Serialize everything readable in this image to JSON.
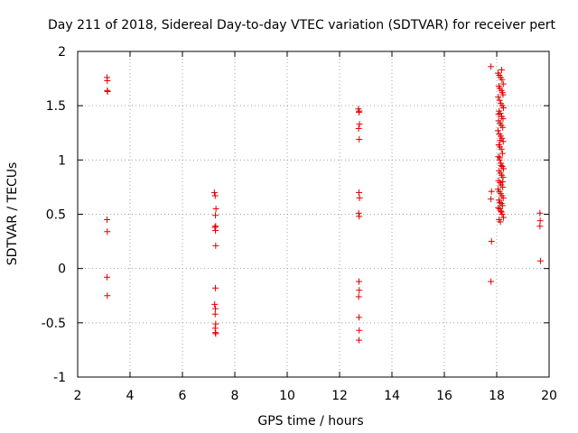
{
  "chart_data": {
    "type": "scatter",
    "title": "Day 211 of 2018, Sidereal Day-to-day VTEC variation (SDTVAR) for receiver pert",
    "xlabel": "GPS time / hours",
    "ylabel": "SDTVAR / TECUs",
    "xlim": [
      2,
      20
    ],
    "ylim": [
      -1,
      2
    ],
    "xticks": [
      2,
      4,
      6,
      8,
      10,
      12,
      14,
      16,
      18,
      20
    ],
    "yticks": [
      -1,
      -0.5,
      0,
      0.5,
      1,
      1.5,
      2
    ],
    "xtick_labels": [
      "2",
      "4",
      "6",
      "8",
      "10",
      "12",
      "14",
      "16",
      "18",
      "20"
    ],
    "ytick_labels": [
      "-1",
      "-0.5",
      "0",
      "0.5",
      "1",
      "1.5",
      "2"
    ],
    "grid": true,
    "marker": "+",
    "color": "#e00000",
    "series": [
      {
        "name": "SDTVAR",
        "x": [
          3.12,
          3.13,
          3.13,
          3.14,
          3.12,
          3.13,
          3.12,
          3.13,
          7.22,
          7.25,
          7.28,
          7.26,
          7.27,
          7.24,
          7.26,
          7.27,
          7.26,
          7.23,
          7.26,
          7.25,
          7.27,
          7.25,
          7.26,
          7.27,
          12.72,
          12.75,
          12.74,
          12.76,
          12.73,
          12.75,
          12.74,
          12.76,
          12.73,
          12.75,
          12.74,
          12.75,
          12.73,
          12.74,
          12.75,
          12.74,
          17.78,
          17.8,
          17.78,
          17.8,
          17.78,
          18.05,
          18.1,
          18.15,
          18.2,
          18.25,
          18.08,
          18.12,
          18.18,
          18.22,
          18.06,
          18.11,
          18.16,
          18.21,
          18.26,
          18.09,
          18.14,
          18.19,
          18.24,
          18.07,
          18.13,
          18.17,
          18.23,
          18.05,
          18.1,
          18.15,
          18.2,
          18.25,
          18.08,
          18.12,
          18.18,
          18.22,
          18.06,
          18.11,
          18.16,
          18.21,
          18.26,
          18.09,
          18.14,
          18.19,
          18.24,
          18.07,
          18.13,
          18.17,
          18.23,
          18.05,
          18.1,
          18.15,
          18.2,
          18.25,
          18.08,
          18.12,
          18.18,
          18.22,
          18.06,
          18.11,
          18.16,
          18.21,
          18.26,
          18.09,
          18.14,
          18.19,
          18.24,
          18.07,
          18.13,
          18.17,
          18.23,
          18.12,
          18.18,
          19.65,
          19.66,
          19.65,
          19.67
        ],
        "y": [
          1.76,
          1.73,
          1.64,
          1.63,
          0.45,
          0.34,
          -0.08,
          -0.25,
          0.7,
          0.67,
          0.55,
          0.49,
          0.39,
          0.38,
          0.35,
          0.21,
          -0.18,
          -0.33,
          -0.37,
          -0.42,
          -0.51,
          -0.55,
          -0.59,
          -0.6,
          1.47,
          1.45,
          1.44,
          1.33,
          1.29,
          1.19,
          0.7,
          0.65,
          0.51,
          0.48,
          -0.12,
          -0.2,
          -0.26,
          -0.45,
          -0.57,
          -0.66,
          1.86,
          0.71,
          0.64,
          0.25,
          -0.12,
          1.8,
          1.78,
          1.76,
          1.74,
          1.7,
          1.68,
          1.66,
          1.64,
          1.62,
          1.58,
          1.55,
          1.52,
          1.5,
          1.48,
          1.45,
          1.43,
          1.4,
          1.38,
          1.36,
          1.34,
          1.32,
          1.3,
          1.27,
          1.24,
          1.22,
          1.2,
          1.17,
          1.14,
          1.12,
          1.1,
          1.06,
          1.03,
          1.0,
          0.97,
          0.94,
          0.92,
          0.9,
          0.88,
          0.86,
          0.84,
          0.81,
          0.79,
          0.77,
          0.75,
          0.73,
          0.71,
          0.69,
          0.67,
          0.65,
          0.63,
          0.61,
          0.6,
          0.58,
          0.56,
          0.55,
          0.53,
          0.5,
          0.47,
          0.45,
          0.43,
          1.83,
          1.6,
          1.42,
          1.18,
          0.95,
          0.8,
          1.02,
          0.52,
          0.51,
          0.44,
          0.39,
          0.07
        ]
      }
    ]
  }
}
